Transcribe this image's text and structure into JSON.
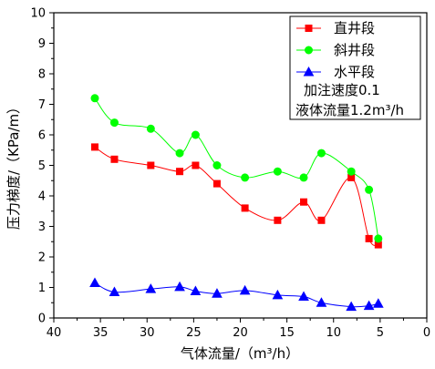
{
  "chart_data": {
    "type": "line",
    "title": "",
    "xlabel": "气体流量/（m³/h）",
    "ylabel": "压力梯度/（KPa/m）",
    "xlim": [
      40,
      0
    ],
    "ylim": [
      0,
      10
    ],
    "x_ticks": [
      40,
      35,
      30,
      25,
      20,
      15,
      10,
      5,
      0
    ],
    "y_ticks": [
      0,
      1,
      2,
      3,
      4,
      5,
      6,
      7,
      8,
      9,
      10
    ],
    "grid": false,
    "legend_position": "top-right",
    "series": [
      {
        "name": "直井段",
        "color": "#ff0000",
        "marker": "square",
        "x": [
          35.6,
          33.5,
          29.6,
          26.5,
          24.8,
          22.5,
          19.5,
          16,
          13.2,
          11.3,
          8.1,
          6.2,
          5.2
        ],
        "y": [
          5.6,
          5.2,
          5.0,
          4.8,
          5.0,
          4.4,
          3.6,
          3.2,
          3.8,
          3.2,
          4.6,
          2.6,
          2.4
        ]
      },
      {
        "name": "斜井段",
        "color": "#00ff00",
        "marker": "circle",
        "x": [
          35.6,
          33.5,
          29.6,
          26.5,
          24.8,
          22.5,
          19.5,
          16,
          13.2,
          11.3,
          8.1,
          6.2,
          5.2
        ],
        "y": [
          7.2,
          6.4,
          6.2,
          5.4,
          6.0,
          5.0,
          4.6,
          4.8,
          4.6,
          5.4,
          4.8,
          4.2,
          2.6
        ]
      },
      {
        "name": "水平段",
        "color": "#0000ff",
        "marker": "triangle",
        "x": [
          35.6,
          33.5,
          29.6,
          26.5,
          24.8,
          22.5,
          19.5,
          16,
          13.2,
          11.3,
          8.1,
          6.2,
          5.2
        ],
        "y": [
          1.15,
          0.85,
          0.95,
          1.02,
          0.88,
          0.8,
          0.9,
          0.75,
          0.7,
          0.5,
          0.37,
          0.4,
          0.47
        ]
      }
    ],
    "annotations": [
      "加注速度0.1",
      "液体流量1.2m³/h"
    ]
  }
}
